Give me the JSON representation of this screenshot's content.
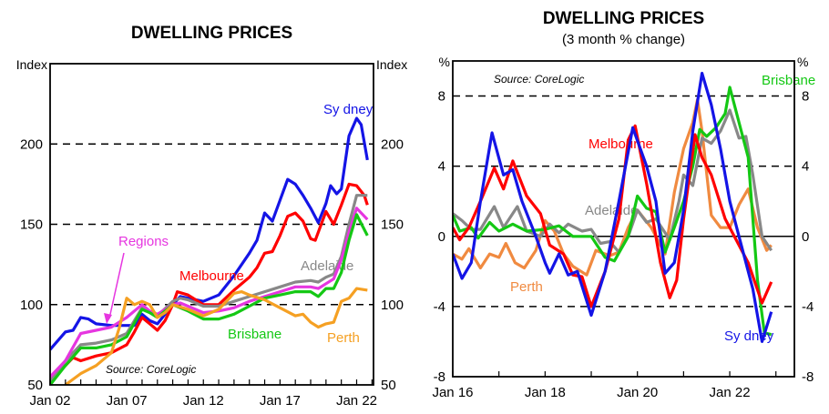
{
  "chart_data": [
    {
      "type": "line",
      "title": "DWELLING PRICES",
      "subtitle": "",
      "ylabel_left": "Index",
      "ylabel_right": "Index",
      "source": "Source:  CoreLogic",
      "xlim": [
        2002,
        2023.1
      ],
      "ylim": [
        50,
        250
      ],
      "yticks": [
        50,
        100,
        150,
        200
      ],
      "ytick_labels": [
        "50",
        "100",
        "150",
        "200"
      ],
      "xticks": [
        2002,
        2007,
        2012,
        2017,
        2022
      ],
      "xtick_labels": [
        "Jan 02",
        "Jan 07",
        "Jan 12",
        "Jan 17",
        "Jan 22"
      ],
      "grid": "dashed horizontal at 100, 150, 200",
      "legend": "inline labels",
      "annotation_arrow": "Regions",
      "series": [
        {
          "name": "Sydney",
          "label": "Sy dney",
          "color": "#1414e6",
          "x": [
            2002,
            2003,
            2003.5,
            2004,
            2004.5,
            2005,
            2006,
            2007,
            2007.5,
            2008,
            2008.5,
            2009,
            2010,
            2010.5,
            2011,
            2012,
            2013,
            2014,
            2015,
            2015.5,
            2016,
            2016.5,
            2017,
            2017.5,
            2018,
            2018.5,
            2019,
            2019.5,
            2020,
            2020.3,
            2020.7,
            2021,
            2021.5,
            2022,
            2022.3,
            2022.7
          ],
          "y": [
            72,
            83,
            84,
            92,
            91,
            88,
            87,
            87,
            87,
            94,
            90,
            88,
            100,
            105,
            104,
            102,
            106,
            118,
            132,
            140,
            157,
            152,
            165,
            178,
            175,
            168,
            160,
            151,
            163,
            174,
            169,
            172,
            205,
            216,
            212,
            190
          ]
        },
        {
          "name": "Melbourne",
          "label": "Melbourne",
          "color": "#ff0000",
          "x": [
            2002,
            2003,
            2003.5,
            2004,
            2005,
            2006,
            2007,
            2007.5,
            2008,
            2008.5,
            2009,
            2009.5,
            2010,
            2010.3,
            2011,
            2011.5,
            2012,
            2013,
            2014,
            2015,
            2015.5,
            2016,
            2016.5,
            2017,
            2017.5,
            2018,
            2018.5,
            2019,
            2019.3,
            2020,
            2020.5,
            2021,
            2021.5,
            2022,
            2022.5,
            2022.7
          ],
          "y": [
            55,
            62,
            67,
            65,
            68,
            70,
            75,
            83,
            92,
            88,
            84,
            90,
            100,
            108,
            106,
            103,
            100,
            100,
            109,
            117,
            123,
            132,
            133,
            143,
            155,
            157,
            152,
            141,
            140,
            158,
            150,
            162,
            175,
            174,
            168,
            162
          ]
        },
        {
          "name": "Adelaide",
          "label": "Adelaide",
          "color": "#888888",
          "x": [
            2002,
            2003,
            2004,
            2005,
            2006,
            2007,
            2007.5,
            2008,
            2008.5,
            2009,
            2010,
            2010.5,
            2011,
            2012,
            2013,
            2014,
            2015,
            2016,
            2017,
            2018,
            2019,
            2019.5,
            2020,
            2020.5,
            2021,
            2021.5,
            2022,
            2022.7
          ],
          "y": [
            52,
            65,
            75,
            76,
            78,
            82,
            90,
            98,
            95,
            93,
            102,
            104,
            103,
            99,
            99,
            102,
            105,
            108,
            111,
            114,
            115,
            114,
            117,
            119,
            130,
            150,
            168,
            168
          ]
        },
        {
          "name": "Regions",
          "label": "Regions",
          "color": "#e636e0",
          "x": [
            2002,
            2003,
            2004,
            2005,
            2006,
            2007,
            2008,
            2008.5,
            2009,
            2010,
            2010.5,
            2011,
            2012,
            2013,
            2014,
            2015,
            2016,
            2017,
            2018,
            2019,
            2019.5,
            2020,
            2020.5,
            2021,
            2021.5,
            2022,
            2022.7
          ],
          "y": [
            55,
            65,
            82,
            84,
            86,
            92,
            100,
            96,
            94,
            100,
            101,
            99,
            95,
            96,
            98,
            102,
            105,
            108,
            111,
            111,
            110,
            113,
            116,
            128,
            145,
            160,
            153
          ]
        },
        {
          "name": "Brisbane",
          "label": "Brisbane",
          "color": "#14c814",
          "x": [
            2002,
            2003,
            2004,
            2005,
            2006,
            2007,
            2008,
            2008.5,
            2009,
            2010,
            2010.5,
            2011,
            2012,
            2013,
            2014,
            2015,
            2016,
            2017,
            2018,
            2019,
            2019.5,
            2020,
            2020.5,
            2021,
            2021.5,
            2022,
            2022.7
          ],
          "y": [
            50,
            62,
            73,
            73,
            75,
            80,
            97,
            95,
            92,
            100,
            98,
            96,
            91,
            91,
            94,
            99,
            104,
            106,
            108,
            108,
            105,
            110,
            110,
            120,
            140,
            156,
            143
          ]
        },
        {
          "name": "Perth",
          "label": "Perth",
          "color": "#f5a023",
          "x": [
            2003,
            2004,
            2005,
            2006,
            2006.5,
            2007,
            2007.5,
            2008,
            2008.5,
            2009,
            2009.5,
            2010,
            2011,
            2012,
            2013,
            2014,
            2014.5,
            2015,
            2016,
            2017,
            2018,
            2018.5,
            2019,
            2019.5,
            2020,
            2020.5,
            2021,
            2021.5,
            2022,
            2022.7
          ],
          "y": [
            50,
            57,
            62,
            70,
            85,
            104,
            100,
            102,
            100,
            92,
            95,
            100,
            97,
            93,
            97,
            107,
            108,
            106,
            103,
            98,
            93,
            94,
            89,
            86,
            88,
            89,
            102,
            104,
            110,
            109
          ]
        }
      ]
    },
    {
      "type": "line",
      "title": "DWELLING PRICES",
      "subtitle": "(3 month % change)",
      "ylabel_left": "%",
      "ylabel_right": "%",
      "source": "Source:  CoreLogic",
      "xlim": [
        2016,
        2023.4
      ],
      "ylim": [
        -8,
        10
      ],
      "yticks": [
        -8,
        -4,
        0,
        4,
        8
      ],
      "ytick_labels": [
        "-8",
        "-4",
        "0",
        "4",
        "8"
      ],
      "xticks": [
        2016,
        2018,
        2020,
        2022
      ],
      "xtick_labels": [
        "Jan 16",
        "Jan 18",
        "Jan 20",
        "Jan 22"
      ],
      "grid": "dashed horizontal at -4, 4, 8; solid at 0",
      "legend": "inline labels",
      "series": [
        {
          "name": "Perth",
          "label": "Perth",
          "color": "#f08a40",
          "x": [
            2016,
            2016.2,
            2016.35,
            2016.6,
            2016.8,
            2017,
            2017.15,
            2017.35,
            2017.55,
            2017.8,
            2018,
            2018.2,
            2018.4,
            2018.6,
            2018.9,
            2019.1,
            2019.4,
            2019.6,
            2019.8,
            2020,
            2020.3,
            2020.6,
            2020.8,
            2021,
            2021.2,
            2021.3,
            2021.4,
            2021.6,
            2021.8,
            2022,
            2022.2,
            2022.4,
            2022.6,
            2022.8,
            2022.9
          ],
          "y": [
            -1,
            -1.3,
            -0.7,
            -1.8,
            -1,
            -1.2,
            -0.4,
            -1.5,
            -1.8,
            -0.8,
            0.9,
            0.3,
            -1,
            -1.7,
            -2.2,
            -0.8,
            -1.1,
            -0.9,
            0.5,
            1.5,
            0.5,
            -1,
            2.5,
            5,
            6.5,
            7.8,
            6,
            1.2,
            0.5,
            0.5,
            1.8,
            2.7,
            0.5,
            -0.8,
            -0.5
          ]
        },
        {
          "name": "Adelaide",
          "label": "Adelaide",
          "color": "#888888",
          "x": [
            2016,
            2016.2,
            2016.4,
            2016.6,
            2016.9,
            2017.1,
            2017.4,
            2017.6,
            2017.9,
            2018.1,
            2018.3,
            2018.5,
            2018.8,
            2019,
            2019.2,
            2019.4,
            2019.6,
            2019.8,
            2020,
            2020.2,
            2020.4,
            2020.7,
            2020.9,
            2021,
            2021.2,
            2021.4,
            2021.6,
            2021.8,
            2022,
            2022.2,
            2022.35,
            2022.5,
            2022.7,
            2022.9
          ],
          "y": [
            1.3,
            0.9,
            0.4,
            0.4,
            1.7,
            0.5,
            1.7,
            0.3,
            0,
            0.7,
            0.2,
            0.7,
            0.3,
            0.4,
            -0.4,
            -0.3,
            -0.9,
            0,
            1.5,
            0.8,
            1,
            -0.2,
            2,
            3.5,
            2.9,
            5.6,
            5.3,
            6,
            7.2,
            5.6,
            5.7,
            3.5,
            0,
            -0.8
          ]
        },
        {
          "name": "Brisbane",
          "label": "Brisbane",
          "color": "#14c814",
          "x": [
            2016,
            2016.15,
            2016.4,
            2016.55,
            2016.8,
            2017,
            2017.3,
            2017.6,
            2018,
            2018.3,
            2018.6,
            2019,
            2019.3,
            2019.5,
            2019.8,
            2020,
            2020.2,
            2020.4,
            2020.6,
            2020.8,
            2021,
            2021.2,
            2021.35,
            2021.5,
            2021.7,
            2021.9,
            2022,
            2022.2,
            2022.4,
            2022.6,
            2022.75,
            2022.9
          ],
          "y": [
            1.2,
            0.3,
            0.5,
            -0.1,
            0.8,
            0.3,
            0.7,
            0.3,
            0.4,
            0.6,
            0,
            0,
            -1.2,
            -1.4,
            0,
            2.3,
            1.6,
            1.4,
            -0.9,
            0.5,
            2,
            4,
            6.1,
            5.7,
            6.2,
            7,
            8.5,
            6.5,
            4.5,
            -2.5,
            -5.5,
            -5.6
          ]
        },
        {
          "name": "Melbourne",
          "label": "Melbourne",
          "color": "#ff0000",
          "x": [
            2016,
            2016.15,
            2016.35,
            2016.6,
            2016.9,
            2017.1,
            2017.3,
            2017.6,
            2017.9,
            2018.1,
            2018.4,
            2018.6,
            2018.8,
            2019,
            2019.3,
            2019.6,
            2019.8,
            2019.95,
            2020.2,
            2020.5,
            2020.7,
            2020.85,
            2021,
            2021.25,
            2021.4,
            2021.6,
            2021.9,
            2022.1,
            2022.4,
            2022.7,
            2022.9
          ],
          "y": [
            0.5,
            -0.2,
            0.5,
            2,
            3.9,
            2.7,
            4.3,
            2.3,
            1.3,
            -0.5,
            -1,
            -2.2,
            -2.3,
            -4,
            -2,
            1,
            5.5,
            6.3,
            3,
            -1.5,
            -3.5,
            -2.5,
            1,
            5.8,
            4.5,
            3.5,
            1,
            0,
            -1.5,
            -3.8,
            -2.6
          ]
        },
        {
          "name": "Sydney",
          "label": "Sy dney",
          "color": "#1414e6",
          "x": [
            2016,
            2016.2,
            2016.4,
            2016.6,
            2016.85,
            2017.1,
            2017.3,
            2017.5,
            2017.8,
            2018,
            2018.1,
            2018.3,
            2018.5,
            2018.7,
            2019,
            2019.3,
            2019.6,
            2019.9,
            2020.2,
            2020.4,
            2020.6,
            2020.8,
            2021,
            2021.2,
            2021.4,
            2021.6,
            2021.8,
            2022,
            2022.2,
            2022.5,
            2022.7,
            2022.9
          ],
          "y": [
            -1,
            -2.4,
            -1.5,
            2,
            5.9,
            3.5,
            3.8,
            2,
            0,
            -1.5,
            -2.1,
            -1,
            -2.2,
            -2,
            -4.5,
            -2,
            2,
            6.2,
            4,
            2,
            -2.1,
            -1.5,
            1.5,
            6,
            9.3,
            7.5,
            5,
            2,
            0,
            -3,
            -6,
            -4.3
          ]
        }
      ]
    }
  ]
}
